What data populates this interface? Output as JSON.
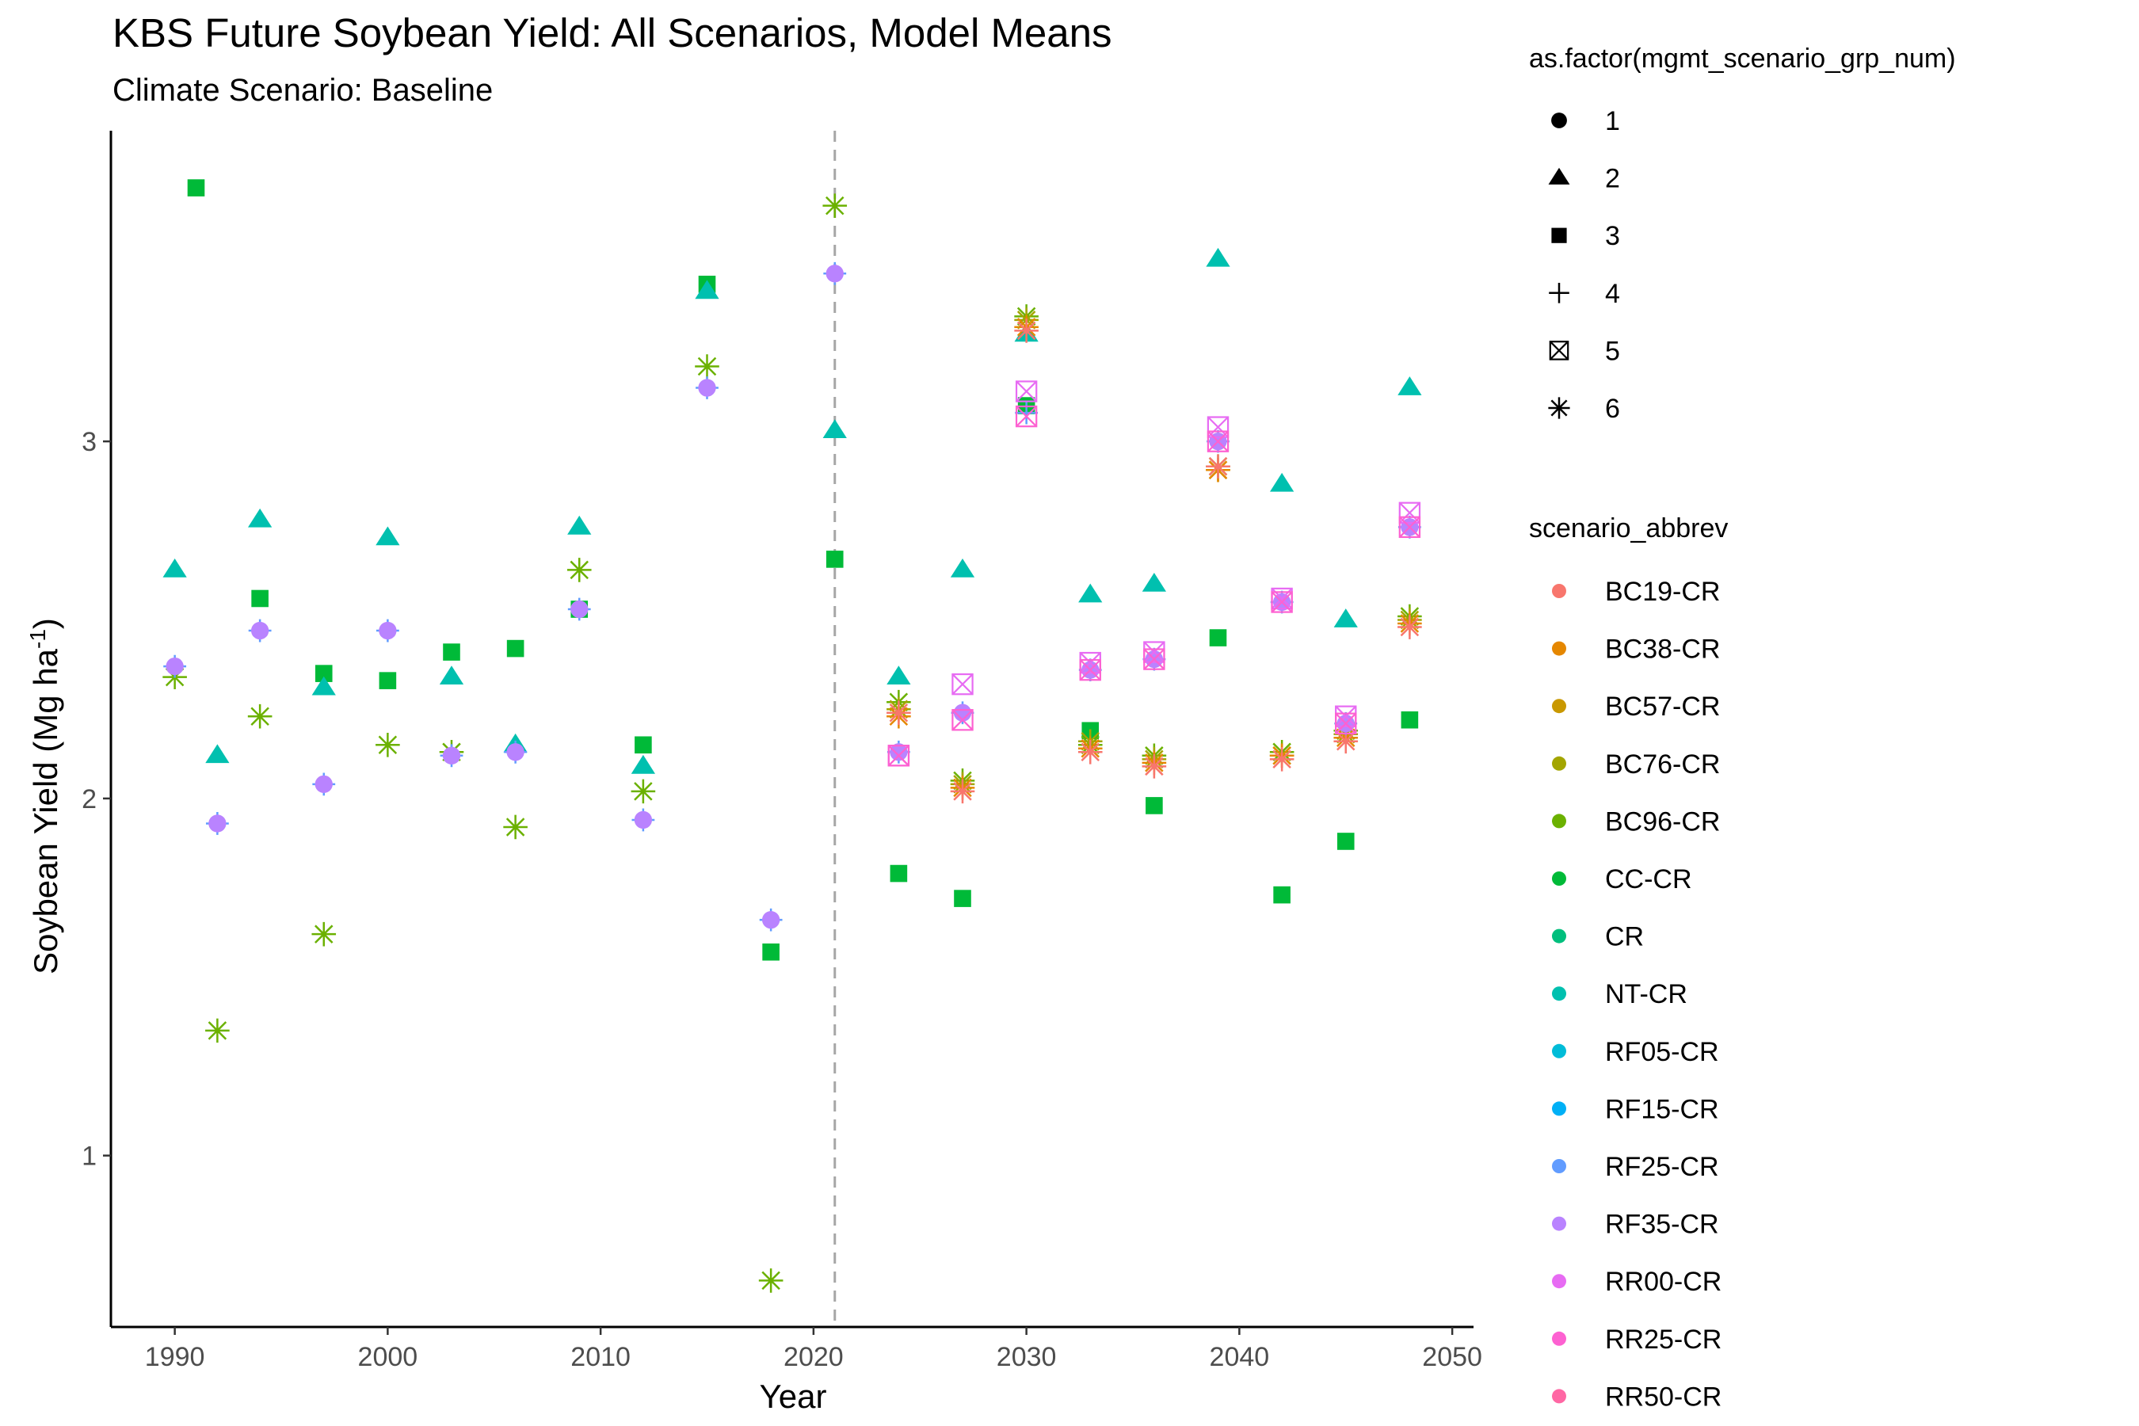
{
  "title": "KBS Future Soybean Yield: All Scenarios, Model Means",
  "subtitle": "Climate Scenario: Baseline",
  "chart_data": {
    "type": "scatter",
    "title": "KBS Future Soybean Yield: All Scenarios, Model Means",
    "subtitle": "Climate Scenario: Baseline",
    "xlabel": "Year",
    "ylabel": "Soybean Yield (Mg ha",
    "ylabel_sup": "-1",
    "ylabel_close": ")",
    "xlim": [
      1987,
      2051
    ],
    "ylim": [
      0.52,
      3.87
    ],
    "xticks": [
      1990,
      2000,
      2010,
      2020,
      2030,
      2040,
      2050
    ],
    "yticks": [
      1,
      2,
      3
    ],
    "grid": false,
    "vline": {
      "x": 2021,
      "style": "dashed",
      "color": "#a6a6a6"
    },
    "legend_shape": {
      "title": "as.factor(mgmt_scenario_grp_num)",
      "entries": [
        {
          "label": "1",
          "shape": "circle"
        },
        {
          "label": "2",
          "shape": "triangle"
        },
        {
          "label": "3",
          "shape": "square"
        },
        {
          "label": "4",
          "shape": "plus"
        },
        {
          "label": "5",
          "shape": "boxx"
        },
        {
          "label": "6",
          "shape": "asterisk"
        }
      ]
    },
    "legend_color": {
      "title": "scenario_abbrev",
      "entries": [
        {
          "label": "BC19-CR",
          "color": "#F8766D"
        },
        {
          "label": "BC38-CR",
          "color": "#E58700"
        },
        {
          "label": "BC57-CR",
          "color": "#C99800"
        },
        {
          "label": "BC76-CR",
          "color": "#A3A500"
        },
        {
          "label": "BC96-CR",
          "color": "#6BB100"
        },
        {
          "label": "CC-CR",
          "color": "#00BA38"
        },
        {
          "label": "CR",
          "color": "#00BF7D"
        },
        {
          "label": "NT-CR",
          "color": "#00C0AF"
        },
        {
          "label": "RF05-CR",
          "color": "#00BCD8"
        },
        {
          "label": "RF15-CR",
          "color": "#00B0F6"
        },
        {
          "label": "RF25-CR",
          "color": "#619CFF"
        },
        {
          "label": "RF35-CR",
          "color": "#B983FF"
        },
        {
          "label": "RR00-CR",
          "color": "#E76BF3"
        },
        {
          "label": "RR25-CR",
          "color": "#FD61D1"
        },
        {
          "label": "RR50-CR",
          "color": "#FF67A4"
        }
      ]
    },
    "series": [
      {
        "name": "CC-CR",
        "shape": "square",
        "color": "#00BA38",
        "x": [
          1991,
          1994,
          1997,
          2000,
          2003,
          2006,
          2009,
          2012,
          2015,
          2018,
          2021,
          2024,
          2027,
          2030,
          2033,
          2036,
          2039,
          2042,
          2045,
          2048
        ],
        "y": [
          3.71,
          2.56,
          2.35,
          2.33,
          2.41,
          2.42,
          2.53,
          2.15,
          3.44,
          1.57,
          2.67,
          1.79,
          1.72,
          3.1,
          2.19,
          1.98,
          2.45,
          1.73,
          1.88,
          2.22
        ]
      },
      {
        "name": "NT-CR",
        "shape": "triangle",
        "color": "#00C0AF",
        "x": [
          1990,
          1992,
          1994,
          1997,
          2000,
          2003,
          2006,
          2009,
          2012,
          2015,
          2021,
          2024,
          2027,
          2030,
          2033,
          2036,
          2039,
          2042,
          2045,
          2048
        ],
        "y": [
          2.64,
          2.12,
          2.78,
          2.31,
          2.73,
          2.34,
          2.15,
          2.76,
          2.09,
          3.42,
          3.03,
          2.34,
          2.64,
          3.3,
          2.57,
          2.6,
          3.51,
          2.88,
          2.5,
          3.15
        ]
      },
      {
        "name": "BC96-CR",
        "shape": "asterisk",
        "color": "#6BB100",
        "x": [
          1990,
          1992,
          1994,
          1997,
          2000,
          2003,
          2006,
          2009,
          2012,
          2015,
          2018,
          2021,
          2024,
          2027,
          2030,
          2033,
          2036,
          2039,
          2042,
          2045,
          2048
        ],
        "y": [
          2.34,
          1.35,
          2.23,
          1.62,
          2.15,
          2.13,
          1.92,
          2.64,
          2.02,
          3.21,
          0.65,
          3.66,
          2.27,
          2.05,
          3.35,
          2.15,
          2.12,
          2.93,
          2.13,
          2.19,
          2.51
        ]
      },
      {
        "name": "BC76-CR",
        "shape": "asterisk",
        "color": "#A3A500",
        "x": [
          2024,
          2027,
          2030,
          2033,
          2036,
          2039,
          2042,
          2045,
          2048
        ],
        "y": [
          2.25,
          2.04,
          3.34,
          2.16,
          2.11,
          2.92,
          2.12,
          2.18,
          2.5
        ]
      },
      {
        "name": "BC38-CR",
        "shape": "asterisk",
        "color": "#E58700",
        "x": [
          2024,
          2027,
          2030,
          2033,
          2036,
          2039,
          2042,
          2045,
          2048
        ],
        "y": [
          2.23,
          2.03,
          3.32,
          2.14,
          2.1,
          2.92,
          2.12,
          2.17,
          2.49
        ]
      },
      {
        "name": "BC19-CR",
        "shape": "asterisk",
        "color": "#F8766D",
        "x": [
          2024,
          2027,
          2030,
          2033,
          2036,
          2039,
          2042,
          2045,
          2048
        ],
        "y": [
          2.24,
          2.02,
          3.31,
          2.13,
          2.09,
          2.93,
          2.11,
          2.16,
          2.48
        ]
      },
      {
        "name": "RF25-CR",
        "shape": "plus",
        "color": "#619CFF",
        "x": [
          1990,
          1992,
          1994,
          1997,
          2000,
          2003,
          2006,
          2009,
          2012,
          2015,
          2018,
          2021,
          2024,
          2027,
          2030,
          2033,
          2036,
          2039,
          2042,
          2045,
          2048
        ],
        "y": [
          2.37,
          1.93,
          2.47,
          2.04,
          2.47,
          2.12,
          2.13,
          2.53,
          1.94,
          3.15,
          1.66,
          3.47,
          2.13,
          2.24,
          3.08,
          2.36,
          2.39,
          3.0,
          2.55,
          2.21,
          2.76
        ]
      },
      {
        "name": "RF35-CR",
        "shape": "circle",
        "color": "#B983FF",
        "x": [
          1990,
          1992,
          1994,
          1997,
          2000,
          2003,
          2006,
          2009,
          2012,
          2015,
          2018,
          2021,
          2024,
          2027,
          2033,
          2036,
          2039,
          2042,
          2045,
          2048
        ],
        "y": [
          2.37,
          1.93,
          2.47,
          2.04,
          2.47,
          2.12,
          2.13,
          2.53,
          1.94,
          3.15,
          1.66,
          3.47,
          2.13,
          2.24,
          2.36,
          2.39,
          3.0,
          2.55,
          2.21,
          2.76
        ]
      },
      {
        "name": "RR00-CR",
        "shape": "boxx",
        "color": "#E76BF3",
        "x": [
          2024,
          2027,
          2030,
          2033,
          2036,
          2039,
          2042,
          2045,
          2048
        ],
        "y": [
          2.12,
          2.32,
          3.14,
          2.38,
          2.41,
          3.04,
          2.56,
          2.23,
          2.8
        ]
      },
      {
        "name": "RR25-CR",
        "shape": "boxx",
        "color": "#FD61D1",
        "x": [
          2024,
          2027,
          2030,
          2033,
          2036,
          2039,
          2042,
          2045,
          2048
        ],
        "y": [
          2.12,
          2.22,
          3.07,
          2.36,
          2.39,
          3.0,
          2.55,
          2.21,
          2.76
        ]
      }
    ]
  }
}
